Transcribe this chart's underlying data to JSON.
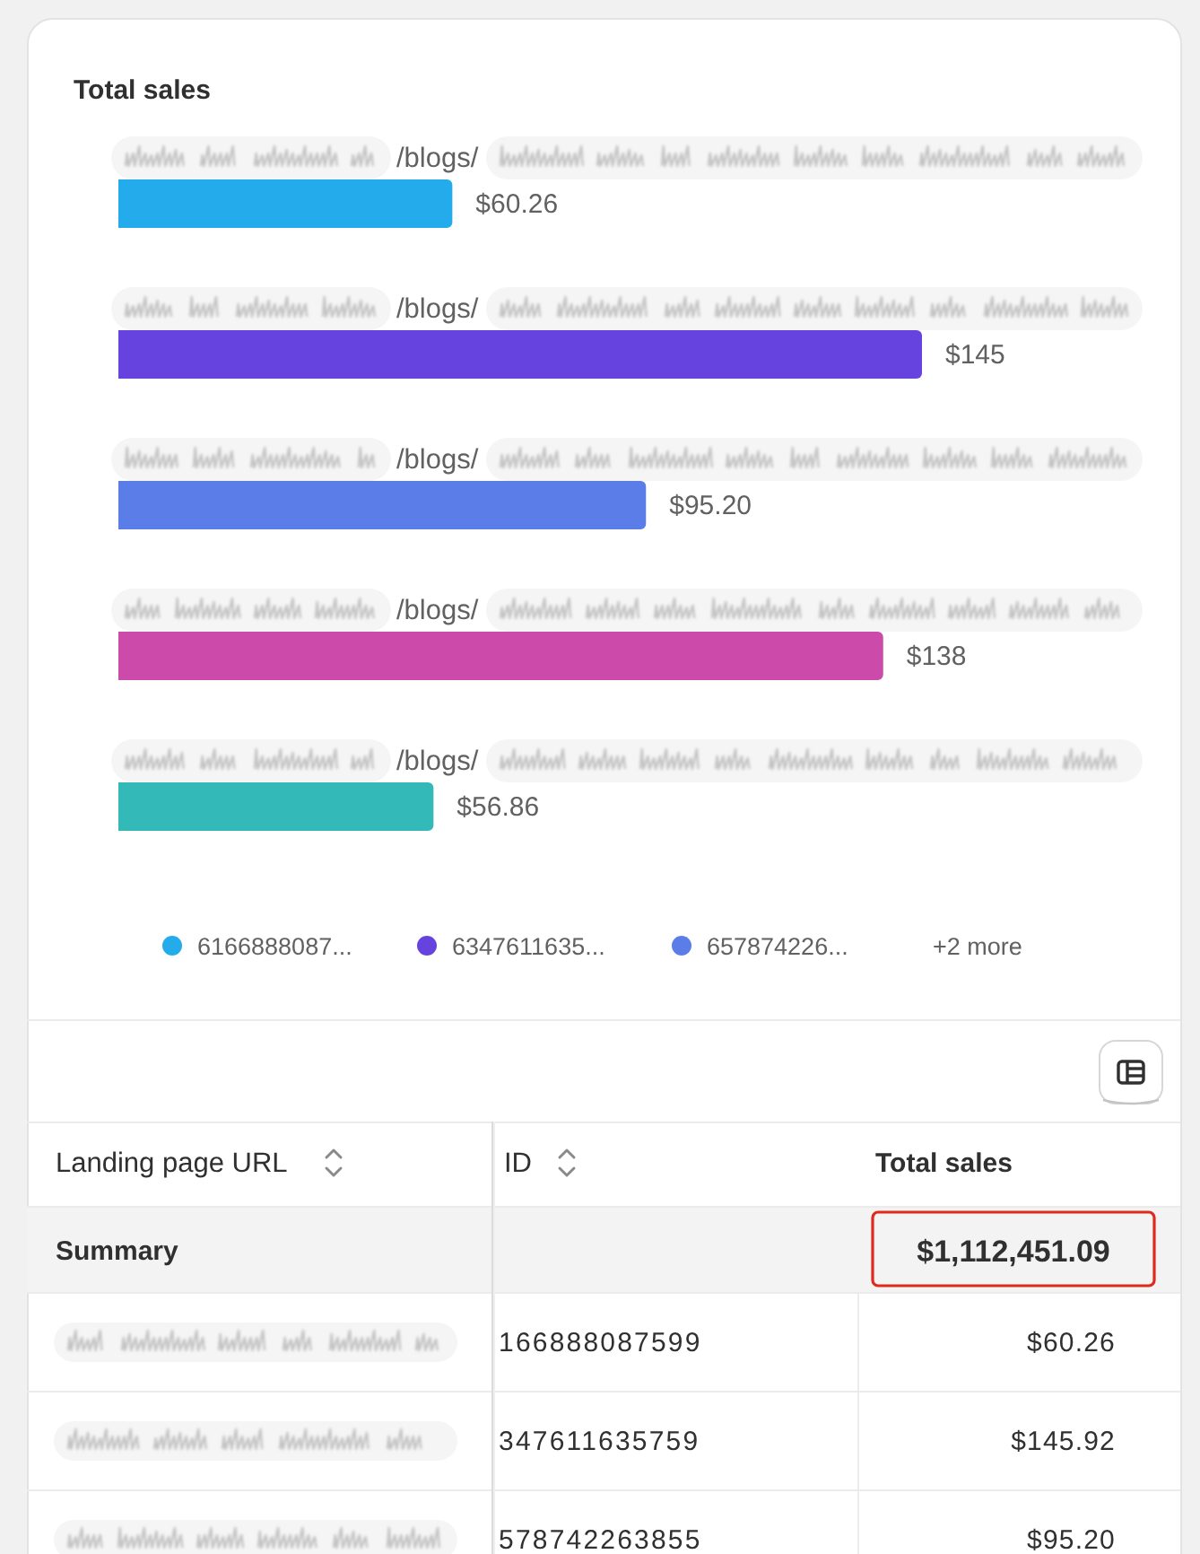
{
  "chart_data": [
    {
      "type": "bar",
      "title": "Total sales",
      "orientation": "horizontal",
      "stacked": true,
      "categories": [
        "/blogs/",
        "/blogs/",
        "/blogs/",
        "/blogs/",
        "/blogs/"
      ],
      "series": [
        {
          "name": "6166888087...",
          "color": "#24abeb",
          "values": [
            60.26,
            null,
            null,
            null,
            null
          ],
          "value_labels": [
            "$60.26",
            null,
            null,
            null,
            null
          ]
        },
        {
          "name": "6347611635...",
          "color": "#6643de",
          "values": [
            null,
            145,
            null,
            null,
            null
          ],
          "value_labels": [
            null,
            "$145",
            null,
            null,
            null
          ]
        },
        {
          "name": "657874226...",
          "color": "#5b7de8",
          "values": [
            null,
            null,
            95.2,
            null,
            null
          ],
          "value_labels": [
            null,
            null,
            "$95.20",
            null,
            null
          ]
        },
        {
          "color": "#cc4aa9",
          "values": [
            null,
            null,
            null,
            138,
            null
          ],
          "value_labels": [
            null,
            null,
            null,
            "$138",
            null
          ]
        },
        {
          "color": "#33bab8",
          "values": [
            null,
            null,
            null,
            null,
            56.86
          ],
          "value_labels": [
            null,
            null,
            null,
            null,
            "$56.86"
          ]
        }
      ],
      "legend": "bottom",
      "annotations": [
        "+2 more"
      ]
    },
    {
      "type": "other",
      "annotations": [
        "Landing page URL",
        "ID",
        "Total sales",
        "Summary",
        "$1,112,451.09",
        "166888087599",
        "$60.26",
        "347611635759",
        "$145.92",
        "578742263855",
        "$95.20"
      ]
    }
  ]
}
